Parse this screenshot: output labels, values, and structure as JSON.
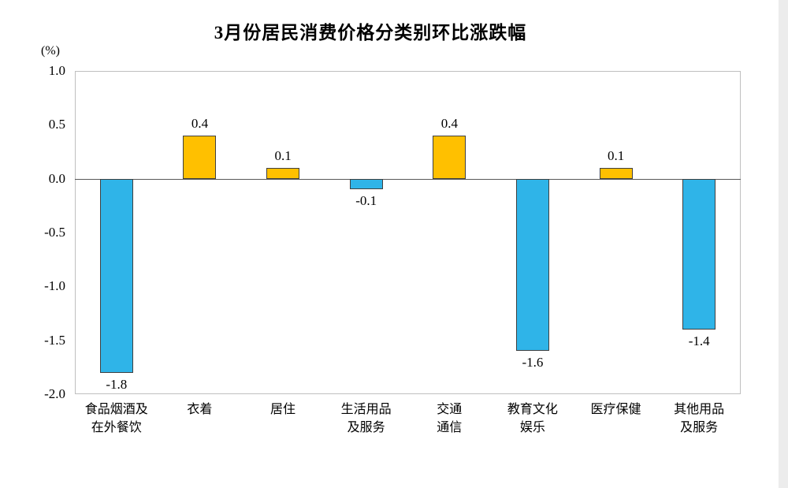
{
  "title": "3月份居民消费价格分类别环比涨跌幅",
  "chart_data": {
    "type": "bar",
    "title": "3月份居民消费价格分类别环比涨跌幅",
    "ylabel": "(%)",
    "xlabel": "",
    "ylim": [
      -2.0,
      1.0
    ],
    "grid": false,
    "legend": "none",
    "categories": [
      "食品烟酒及\n在外餐饮",
      "衣着",
      "居住",
      "生活用品\n及服务",
      "交通\n通信",
      "教育文化\n娱乐",
      "医疗保健",
      "其他用品\n及服务"
    ],
    "values": [
      -1.8,
      0.4,
      0.1,
      -0.1,
      0.4,
      -1.6,
      0.1,
      -1.4
    ],
    "value_labels": [
      "-1.8",
      "0.4",
      "0.1",
      "-0.1",
      "0.4",
      "-1.6",
      "0.1",
      "-1.4"
    ],
    "yticks": [
      {
        "value": 1.0,
        "label": "1.0"
      },
      {
        "value": 0.5,
        "label": "0.5"
      },
      {
        "value": 0.0,
        "label": "0.0"
      },
      {
        "value": -0.5,
        "label": "-0.5"
      },
      {
        "value": -1.0,
        "label": "-1.0"
      },
      {
        "value": -1.5,
        "label": "-1.5"
      },
      {
        "value": -2.0,
        "label": "-2.0"
      }
    ],
    "colors": {
      "positive": "#FFC000",
      "negative": "#2FB4E8",
      "bar_border": "#404040",
      "zero_line": "#595959",
      "plot_border": "#BFBFBF"
    }
  }
}
